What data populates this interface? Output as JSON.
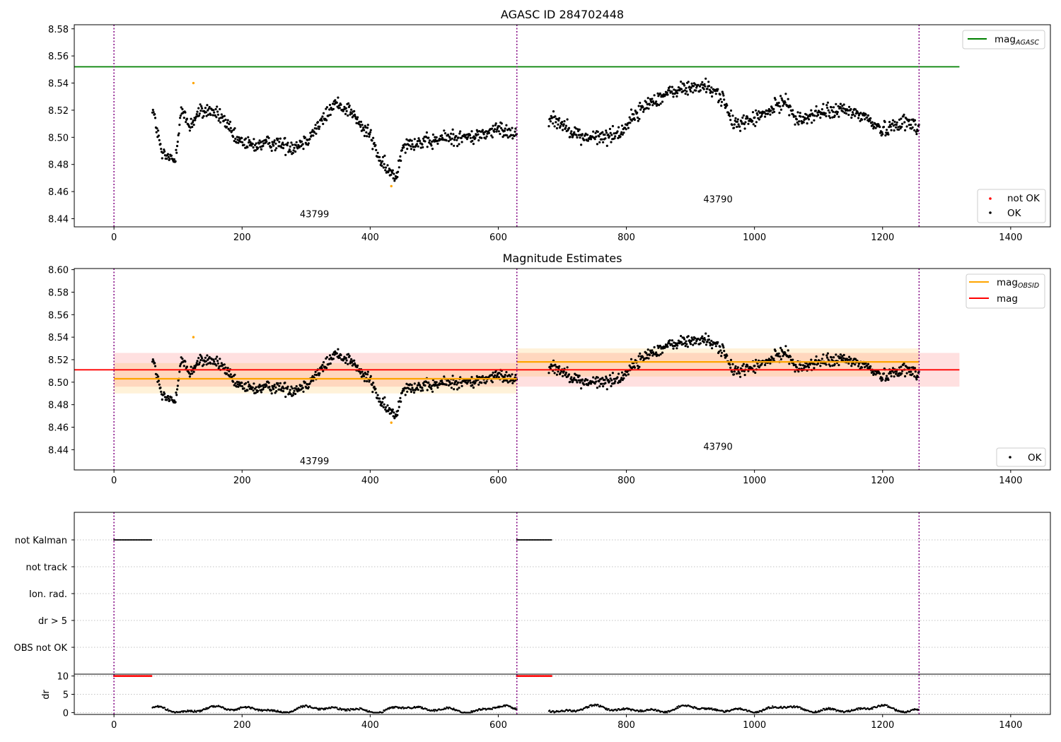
{
  "chart_data": [
    {
      "type": "scatter",
      "title": "AGASC ID 284702448",
      "xlim": [
        -62,
        1462
      ],
      "ylim": [
        8.434,
        8.583
      ],
      "xticks": [
        0,
        200,
        400,
        600,
        800,
        1000,
        1200,
        1400
      ],
      "yticks": [
        8.44,
        8.46,
        8.48,
        8.5,
        8.52,
        8.54,
        8.56,
        8.58
      ],
      "mag_agasc": 8.552,
      "mag_agasc_x": [
        -62,
        1320
      ],
      "obs_boundaries": [
        0,
        629,
        1257
      ],
      "observations": [
        {
          "obsid": "43799",
          "x_start": 60,
          "x_end": 629,
          "label_x": 313,
          "label_y": 8.441
        },
        {
          "obsid": "43790",
          "x_start": 679,
          "x_end": 1257,
          "label_x": 943,
          "label_y": 8.452
        }
      ],
      "not_ok_points": [
        [
          124,
          8.54
        ],
        [
          433,
          8.464
        ]
      ],
      "series_labels": {
        "line": "mag",
        "line_sub": "AGASC",
        "not_ok": "not OK",
        "ok": "OK"
      },
      "legend": [
        "top-right",
        "bottom-right"
      ],
      "colors": {
        "line": "#008000",
        "ok": "#000000",
        "not_ok": "#ff0000",
        "highlight": "#ffa500",
        "boundary": "#800080"
      }
    },
    {
      "type": "scatter",
      "title": "Magnitude Estimates",
      "xlim": [
        -62,
        1462
      ],
      "ylim": [
        8.422,
        8.601
      ],
      "xticks": [
        0,
        200,
        400,
        600,
        800,
        1000,
        1200,
        1400
      ],
      "yticks": [
        8.44,
        8.46,
        8.48,
        8.5,
        8.52,
        8.54,
        8.56,
        8.58,
        8.6
      ],
      "mag": 8.511,
      "mag_band": [
        8.496,
        8.526
      ],
      "mag_x": [
        -62,
        1320
      ],
      "obs_mags": [
        {
          "obsid": "43799",
          "x": [
            0,
            629
          ],
          "mag": 8.503,
          "band": [
            8.49,
            8.517
          ],
          "label_x": 313,
          "label_y": 8.427
        },
        {
          "obsid": "43790",
          "x": [
            629,
            1257
          ],
          "mag": 8.518,
          "band": [
            8.505,
            8.53
          ],
          "label_x": 943,
          "label_y": 8.44
        }
      ],
      "series_labels": {
        "obs_line": "mag",
        "obs_line_sub": "OBSID",
        "mag_line": "mag",
        "ok": "OK"
      },
      "legend": [
        "top-right",
        "bottom-right"
      ],
      "colors": {
        "obs_line": "#ffa500",
        "mag_line": "#ff0000",
        "ok": "#000000"
      }
    },
    {
      "type": "scatter",
      "xlim": [
        -62,
        1462
      ],
      "flag_labels": [
        "not Kalman",
        "not track",
        "Ion. rad.",
        "dr > 5",
        "OBS not OK"
      ],
      "flag_segments": {
        "not Kalman": [
          [
            0,
            59
          ],
          [
            629,
            683
          ]
        ]
      },
      "dr_segments": [
        [
          0,
          59
        ],
        [
          629,
          683
        ]
      ],
      "dr_yticks": [
        0,
        5,
        10
      ],
      "dr_ylabel": "dr",
      "dr_ylim": [
        -0.5,
        10.5
      ],
      "xticks": [
        0,
        200,
        400,
        600,
        800,
        1000,
        1200,
        1400
      ]
    }
  ]
}
